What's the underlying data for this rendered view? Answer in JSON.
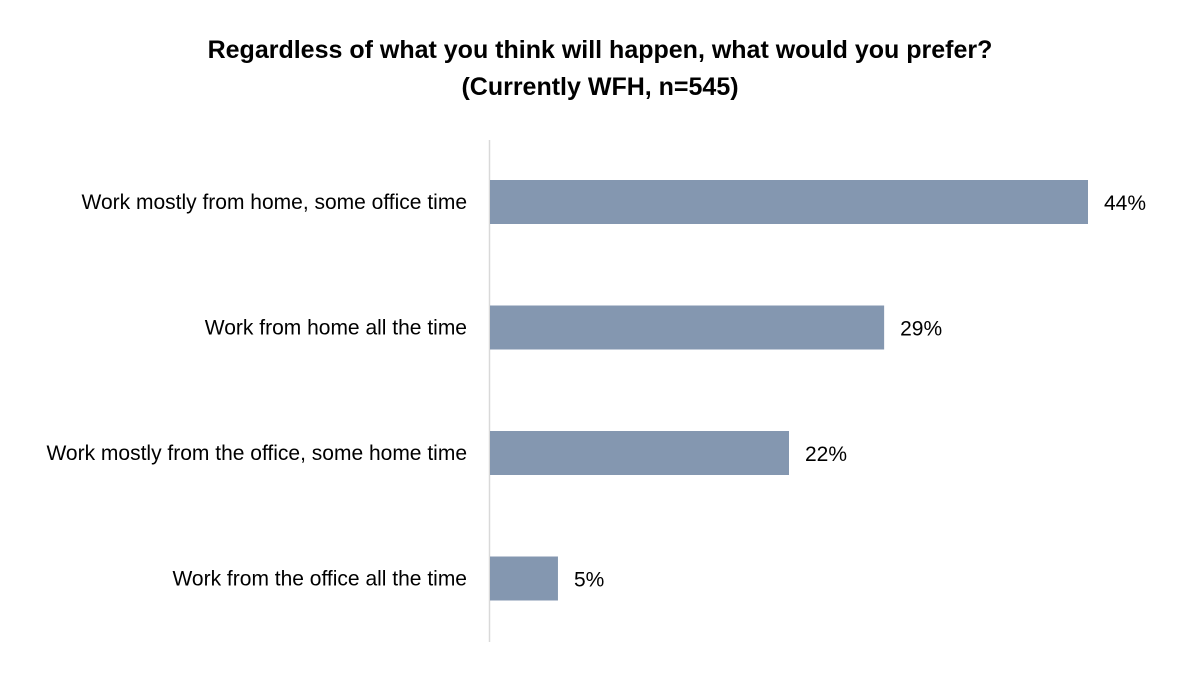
{
  "chart_data": {
    "type": "bar",
    "orientation": "horizontal",
    "title": "Regardless of what you think will happen, what would you prefer?",
    "subtitle": "(Currently WFH, n=545)",
    "categories": [
      "Work mostly from home, some office time",
      "Work from home all the time",
      "Work mostly from the office, some home time",
      "Work from the office all the time"
    ],
    "values": [
      44,
      29,
      22,
      5
    ],
    "value_labels": [
      "44%",
      "29%",
      "22%",
      "5%"
    ],
    "unit": "%",
    "xlim": [
      0,
      44
    ],
    "grid": false,
    "legend": "none",
    "bar_color": "#8497B0",
    "axis_color": "#D9D9D9"
  }
}
